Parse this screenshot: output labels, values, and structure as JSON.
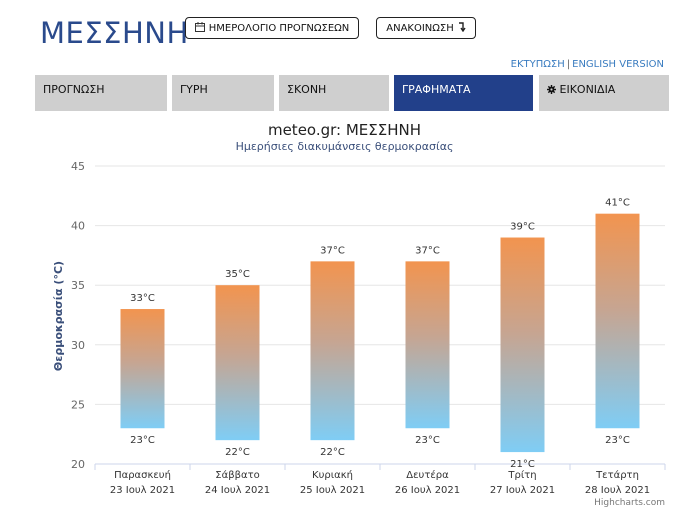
{
  "header": {
    "title": "ΜΕΣΣΗΝΗ",
    "calendar_button": "ΗΜΕΡΟΛΟΓΙΟ ΠΡΟΓΝΩΣΕΩΝ",
    "announcement_button": "ΑΝΑΚΟΙΝΩΣΗ",
    "print_link": "ΕΚΤΥΠΩΣΗ",
    "separator": "|",
    "english_link": "ENGLISH VERSION"
  },
  "tabs": [
    {
      "label": "ΠΡΟΓΝΩΣΗ",
      "active": false
    },
    {
      "label": "ΓΥΡΗ",
      "active": false
    },
    {
      "label": "ΣΚΟΝΗ",
      "active": false
    },
    {
      "label": "ΓΡΑΦΗΜΑΤΑ",
      "active": true
    },
    {
      "label": "ΕΙΚΟΝΙΔΙΑ",
      "active": false
    }
  ],
  "icons": [
    "calendar-icon",
    "arrow-down-icon",
    "gear-icon"
  ],
  "colors": {
    "accent": "#22408a",
    "tab_bg": "#cfcfcf",
    "link": "#3a7cc0",
    "bar_top": "#f2944f",
    "bar_bottom": "#7fcdf5"
  },
  "chart_data": {
    "type": "bar",
    "title": "meteo.gr: ΜΕΣΣΗΝΗ",
    "subtitle": "Ημερήσιες διακυμάνσεις θερμοκρασίας",
    "ylabel": "Θερμοκρασία (°C)",
    "ylim": [
      20,
      45
    ],
    "yticks": [
      20,
      25,
      30,
      35,
      40,
      45
    ],
    "grid": true,
    "categories": [
      {
        "day": "Παρασκευή",
        "date": "23 Ιουλ 2021"
      },
      {
        "day": "Σάββατο",
        "date": "24 Ιουλ 2021"
      },
      {
        "day": "Κυριακή",
        "date": "25 Ιουλ 2021"
      },
      {
        "day": "Δευτέρα",
        "date": "26 Ιουλ 2021"
      },
      {
        "day": "Τρίτη",
        "date": "27 Ιουλ 2021"
      },
      {
        "day": "Τετάρτη",
        "date": "28 Ιουλ 2021"
      }
    ],
    "series": [
      {
        "values_low": [
          23,
          22,
          22,
          23,
          21,
          23
        ],
        "values_high": [
          33,
          35,
          37,
          37,
          39,
          41
        ]
      }
    ],
    "unit": "°C",
    "credit": "Highcharts.com"
  }
}
